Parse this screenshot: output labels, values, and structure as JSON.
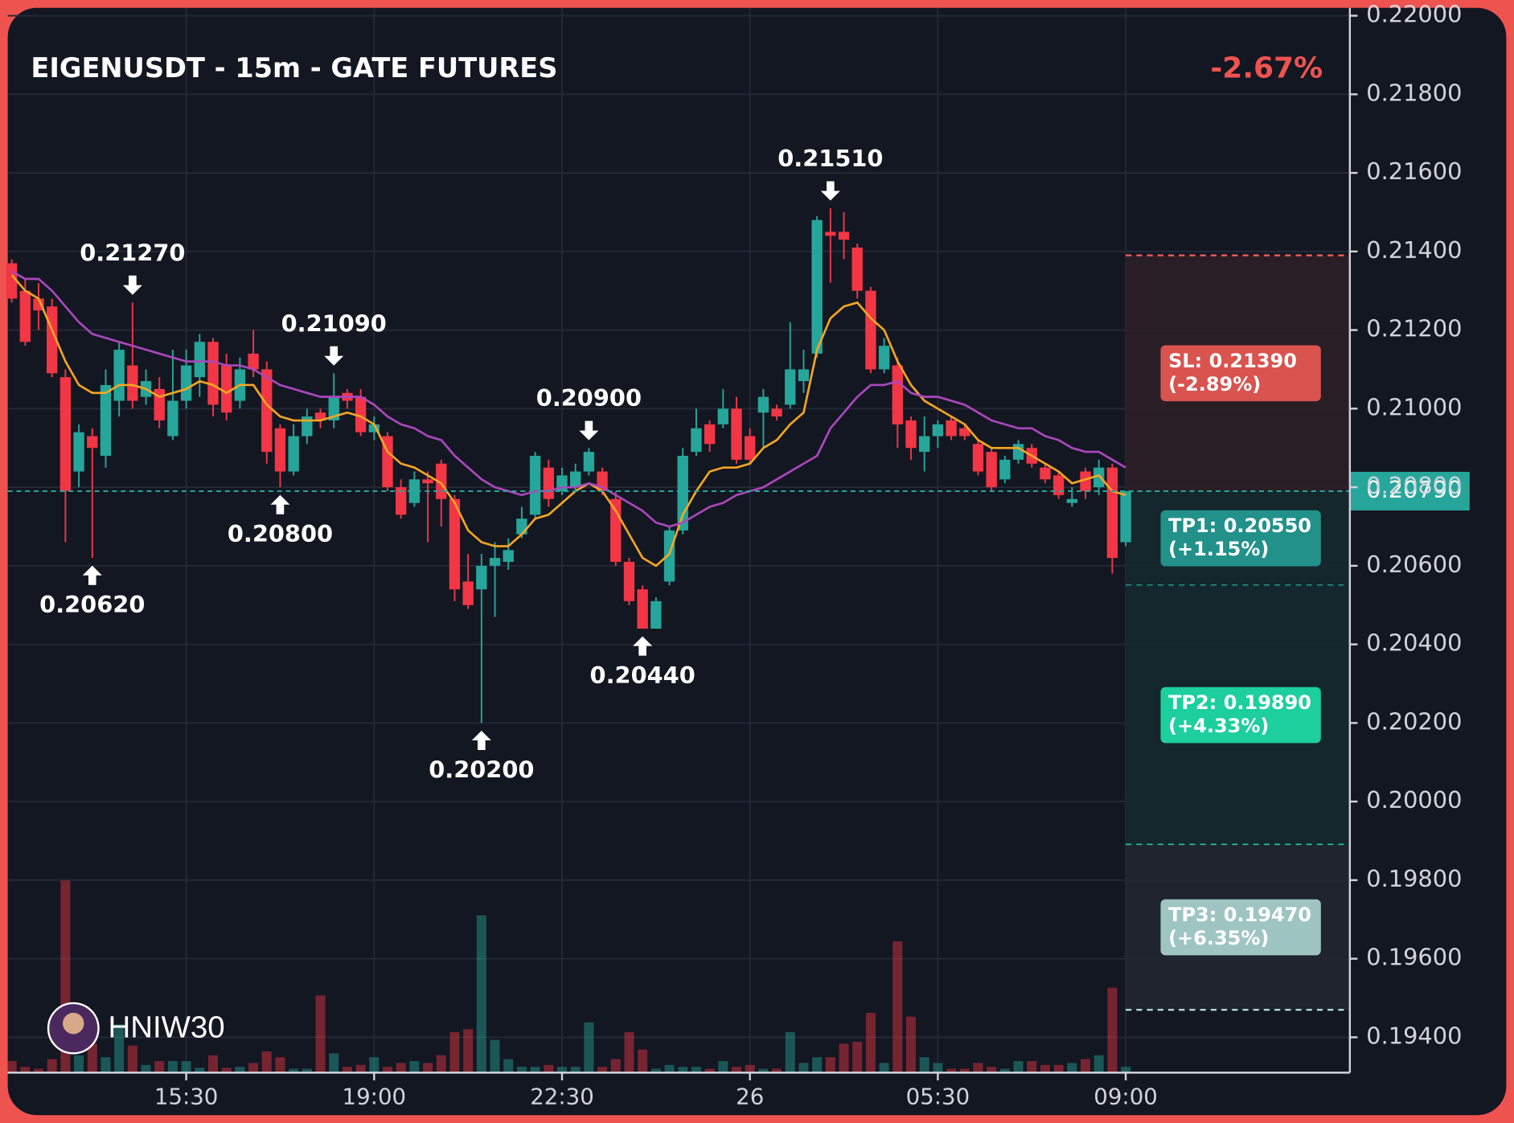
{
  "chart_data": {
    "type": "candlestick",
    "title": "EIGENUSDT - 15m - GATE FUTURES",
    "change": "-2.67%",
    "watermark": "HNIW30",
    "up_color": "#26a69a",
    "down_color": "#f23645",
    "grid": true,
    "xlim": [
      -0.3,
      99.7
    ],
    "xticks": [
      {
        "value": 13,
        "label": "15:30"
      },
      {
        "value": 27,
        "label": "19:00"
      },
      {
        "value": 41,
        "label": "22:30"
      },
      {
        "value": 55,
        "label": "26"
      },
      {
        "value": 69,
        "label": "05:30"
      },
      {
        "value": 83,
        "label": "09:00"
      }
    ],
    "ylim": [
      0.1931,
      0.2202
    ],
    "yticks": [
      {
        "value": 0.22,
        "label": "0.22000"
      },
      {
        "value": 0.218,
        "label": "0.21800"
      },
      {
        "value": 0.216,
        "label": "0.21600"
      },
      {
        "value": 0.214,
        "label": "0.21400"
      },
      {
        "value": 0.212,
        "label": "0.21200"
      },
      {
        "value": 0.21,
        "label": "0.21000"
      },
      {
        "value": 0.208,
        "label": "0.20800"
      },
      {
        "value": 0.206,
        "label": "0.20600"
      },
      {
        "value": 0.204,
        "label": "0.20400"
      },
      {
        "value": 0.202,
        "label": "0.20200"
      },
      {
        "value": 0.2,
        "label": "0.20000"
      },
      {
        "value": 0.198,
        "label": "0.19800"
      },
      {
        "value": 0.196,
        "label": "0.19600"
      },
      {
        "value": 0.194,
        "label": "0.19400"
      }
    ],
    "open": [
      0.2137,
      0.213,
      0.2128,
      0.2126,
      0.2108,
      0.2084,
      0.2093,
      0.2088,
      0.2102,
      0.2111,
      0.2103,
      0.2105,
      0.2093,
      0.2102,
      0.2108,
      0.2117,
      0.2111,
      0.2102,
      0.2114,
      0.211,
      0.2095,
      0.2084,
      0.2093,
      0.2099,
      0.2097,
      0.2104,
      0.2103,
      0.2094,
      0.2093,
      0.208,
      0.2076,
      0.2082,
      0.2086,
      0.2077,
      0.2056,
      0.2054,
      0.206,
      0.2061,
      0.2068,
      0.2073,
      0.2085,
      0.2079,
      0.208,
      0.2084,
      0.2084,
      0.2077,
      0.2061,
      0.2054,
      0.2044,
      0.2056,
      0.2069,
      0.2089,
      0.2096,
      0.2096,
      0.21,
      0.2093,
      0.2099,
      0.21,
      0.2101,
      0.2107,
      0.2114,
      0.2145,
      0.2145,
      0.2141,
      0.213,
      0.211,
      0.2111,
      0.2097,
      0.2089,
      0.2093,
      0.2097,
      0.2095,
      0.2091,
      0.2089,
      0.2082,
      0.2087,
      0.209,
      0.2085,
      0.2083,
      0.2076,
      0.2084,
      0.208,
      0.2085,
      0.2066
    ],
    "high": [
      0.2138,
      0.2133,
      0.2132,
      0.2128,
      0.211,
      0.2096,
      0.2095,
      0.211,
      0.2117,
      0.2127,
      0.211,
      0.2108,
      0.2115,
      0.2115,
      0.2119,
      0.2118,
      0.2114,
      0.2113,
      0.212,
      0.2112,
      0.2096,
      0.2096,
      0.21,
      0.21,
      0.2109,
      0.2105,
      0.2105,
      0.2098,
      0.2094,
      0.2082,
      0.2084,
      0.2084,
      0.2087,
      0.2078,
      0.2063,
      0.2063,
      0.2066,
      0.2067,
      0.2075,
      0.2089,
      0.2087,
      0.2085,
      0.2086,
      0.209,
      0.2085,
      0.2079,
      0.2062,
      0.2055,
      0.2052,
      0.207,
      0.209,
      0.21,
      0.2097,
      0.2105,
      0.2103,
      0.2095,
      0.2105,
      0.2101,
      0.2122,
      0.2115,
      0.2149,
      0.2151,
      0.215,
      0.2142,
      0.2131,
      0.2118,
      0.2113,
      0.2098,
      0.2098,
      0.2097,
      0.2098,
      0.2096,
      0.2092,
      0.209,
      0.2088,
      0.2092,
      0.2091,
      0.2086,
      0.2084,
      0.208,
      0.2085,
      0.2087,
      0.2086,
      0.2079
    ],
    "low": [
      0.2127,
      0.2116,
      0.212,
      0.2108,
      0.2066,
      0.208,
      0.2062,
      0.2085,
      0.2098,
      0.21,
      0.2101,
      0.2095,
      0.2092,
      0.21,
      0.2103,
      0.2098,
      0.2097,
      0.21,
      0.2108,
      0.2086,
      0.208,
      0.2083,
      0.2091,
      0.2095,
      0.2095,
      0.21,
      0.2093,
      0.2092,
      0.2079,
      0.2072,
      0.2075,
      0.2066,
      0.207,
      0.2051,
      0.2049,
      0.202,
      0.2047,
      0.2059,
      0.2067,
      0.2072,
      0.2075,
      0.2078,
      0.2079,
      0.2083,
      0.2078,
      0.206,
      0.205,
      0.2044,
      0.2044,
      0.2055,
      0.2068,
      0.2088,
      0.2089,
      0.2095,
      0.2086,
      0.2086,
      0.209,
      0.2097,
      0.21,
      0.2104,
      0.2113,
      0.2132,
      0.2138,
      0.2128,
      0.2109,
      0.2109,
      0.209,
      0.2087,
      0.2084,
      0.209,
      0.2092,
      0.2092,
      0.2083,
      0.2079,
      0.2081,
      0.2086,
      0.2085,
      0.2081,
      0.2077,
      0.2075,
      0.2077,
      0.2078,
      0.2058,
      0.2065
    ],
    "close": [
      0.2128,
      0.2117,
      0.2125,
      0.2109,
      0.2079,
      0.2094,
      0.209,
      0.2106,
      0.2115,
      0.2102,
      0.2107,
      0.2097,
      0.2102,
      0.2111,
      0.2117,
      0.2101,
      0.2099,
      0.211,
      0.211,
      0.2089,
      0.2084,
      0.2093,
      0.2098,
      0.2097,
      0.2103,
      0.2102,
      0.2094,
      0.2096,
      0.208,
      0.2073,
      0.2082,
      0.2081,
      0.2077,
      0.2054,
      0.205,
      0.206,
      0.2062,
      0.2064,
      0.2072,
      0.2088,
      0.2077,
      0.2083,
      0.2084,
      0.2089,
      0.2079,
      0.2061,
      0.2051,
      0.2044,
      0.2051,
      0.2069,
      0.2088,
      0.2095,
      0.2091,
      0.21,
      0.2087,
      0.2087,
      0.2103,
      0.2098,
      0.211,
      0.211,
      0.2148,
      0.2144,
      0.2143,
      0.213,
      0.211,
      0.2116,
      0.2096,
      0.209,
      0.2093,
      0.2096,
      0.2093,
      0.2093,
      0.2084,
      0.208,
      0.2087,
      0.2091,
      0.2086,
      0.2082,
      0.2078,
      0.2077,
      0.2079,
      0.2085,
      0.2062,
      0.2079
    ],
    "volume": [
      12,
      6,
      4,
      14,
      199,
      18,
      30,
      16,
      50,
      28,
      8,
      12,
      12,
      12,
      5,
      18,
      5,
      6,
      10,
      22,
      16,
      4,
      4,
      80,
      20,
      6,
      8,
      16,
      6,
      10,
      12,
      10,
      18,
      42,
      45,
      163,
      34,
      14,
      6,
      6,
      8,
      6,
      6,
      52,
      6,
      14,
      42,
      24,
      4,
      8,
      6,
      6,
      4,
      12,
      6,
      8,
      4,
      4,
      42,
      10,
      16,
      16,
      30,
      32,
      62,
      10,
      136,
      58,
      16,
      10,
      4,
      4,
      10,
      6,
      4,
      12,
      12,
      8,
      8,
      10,
      14,
      18,
      88,
      6
    ],
    "ma_lines": [
      {
        "color": "#f5a623",
        "values": [
          0.2134,
          0.213,
          0.2128,
          0.212,
          0.2112,
          0.2106,
          0.2104,
          0.2104,
          0.2106,
          0.2106,
          0.2105,
          0.2103,
          0.2104,
          0.2105,
          0.2107,
          0.2106,
          0.2104,
          0.2106,
          0.2106,
          0.2101,
          0.2098,
          0.2097,
          0.2097,
          0.2097,
          0.2098,
          0.2099,
          0.2098,
          0.2096,
          0.2089,
          0.2086,
          0.2085,
          0.2083,
          0.2081,
          0.2076,
          0.2069,
          0.2066,
          0.2065,
          0.2065,
          0.2068,
          0.2072,
          0.2073,
          0.2076,
          0.2079,
          0.2081,
          0.2079,
          0.2074,
          0.2068,
          0.2062,
          0.206,
          0.2063,
          0.2073,
          0.2079,
          0.2084,
          0.2085,
          0.2085,
          0.2086,
          0.209,
          0.2092,
          0.2096,
          0.2099,
          0.2115,
          0.2123,
          0.2126,
          0.2127,
          0.2123,
          0.212,
          0.2112,
          0.2106,
          0.2102,
          0.21,
          0.2098,
          0.2096,
          0.2092,
          0.209,
          0.209,
          0.209,
          0.2088,
          0.2086,
          0.2084,
          0.2081,
          0.2082,
          0.2083,
          0.2079,
          0.2078
        ]
      },
      {
        "color": "#ab47bc",
        "values": [
          0.2135,
          0.2133,
          0.2133,
          0.213,
          0.2126,
          0.2122,
          0.2119,
          0.2118,
          0.2117,
          0.2116,
          0.2115,
          0.2114,
          0.2113,
          0.2112,
          0.2112,
          0.2112,
          0.2111,
          0.2111,
          0.211,
          0.2108,
          0.2106,
          0.2105,
          0.2104,
          0.2103,
          0.2103,
          0.2103,
          0.2103,
          0.2101,
          0.2098,
          0.2096,
          0.2095,
          0.2093,
          0.2092,
          0.2088,
          0.2085,
          0.2082,
          0.208,
          0.2079,
          0.2078,
          0.2079,
          0.2079,
          0.208,
          0.208,
          0.2081,
          0.208,
          0.2078,
          0.2076,
          0.2074,
          0.2071,
          0.207,
          0.2071,
          0.2073,
          0.2075,
          0.2076,
          0.2078,
          0.2079,
          0.208,
          0.2082,
          0.2084,
          0.2086,
          0.2088,
          0.2095,
          0.2099,
          0.2103,
          0.2106,
          0.2106,
          0.2107,
          0.2104,
          0.2103,
          0.2103,
          0.2102,
          0.2101,
          0.2099,
          0.2097,
          0.2096,
          0.2095,
          0.2095,
          0.2093,
          0.2092,
          0.209,
          0.2089,
          0.2089,
          0.2087,
          0.2085
        ]
      }
    ],
    "peaks": [
      {
        "x": 9,
        "value": 0.2127,
        "label": "0.21270",
        "side": "high"
      },
      {
        "x": 24,
        "value": 0.2109,
        "label": "0.21090",
        "side": "high"
      },
      {
        "x": 43,
        "value": 0.209,
        "label": "0.20900",
        "side": "high"
      },
      {
        "x": 61,
        "value": 0.2151,
        "label": "0.21510",
        "side": "high"
      },
      {
        "x": 6,
        "value": 0.2062,
        "label": "0.20620",
        "side": "low"
      },
      {
        "x": 20,
        "value": 0.208,
        "label": "0.20800",
        "side": "low"
      },
      {
        "x": 35,
        "value": 0.202,
        "label": "0.20200",
        "side": "low"
      },
      {
        "x": 47,
        "value": 0.2044,
        "label": "0.20440",
        "side": "low"
      }
    ],
    "last_price": {
      "value": 0.2079,
      "label": "0.20790",
      "color": "#26a69a"
    },
    "levels": [
      {
        "value": 0.2139,
        "label": "SL: 0.21390",
        "change": "(-2.89%)",
        "color": "#d9534f",
        "line_color": "#f05a5a",
        "zone_color": "#2e1f27",
        "from": 0.2079
      },
      {
        "value": 0.2055,
        "label": "TP1: 0.20550",
        "change": "(+1.15%)",
        "color": "#21918a",
        "line_color": "#26a69a",
        "zone_color": "#14292d",
        "from": 0.2079
      },
      {
        "value": 0.1989,
        "label": "TP2: 0.19890",
        "change": "(+4.33%)",
        "color": "#1ccf9d",
        "line_color": "#2ee0b0",
        "zone_color": "#14292d",
        "from": 0.2055
      },
      {
        "value": 0.1947,
        "label": "TP3: 0.19470",
        "change": "(+6.35%)",
        "color": "#9fc5c3",
        "line_color": "#b0d8d8",
        "zone_color": "#222631",
        "from": 0.1989
      }
    ]
  }
}
